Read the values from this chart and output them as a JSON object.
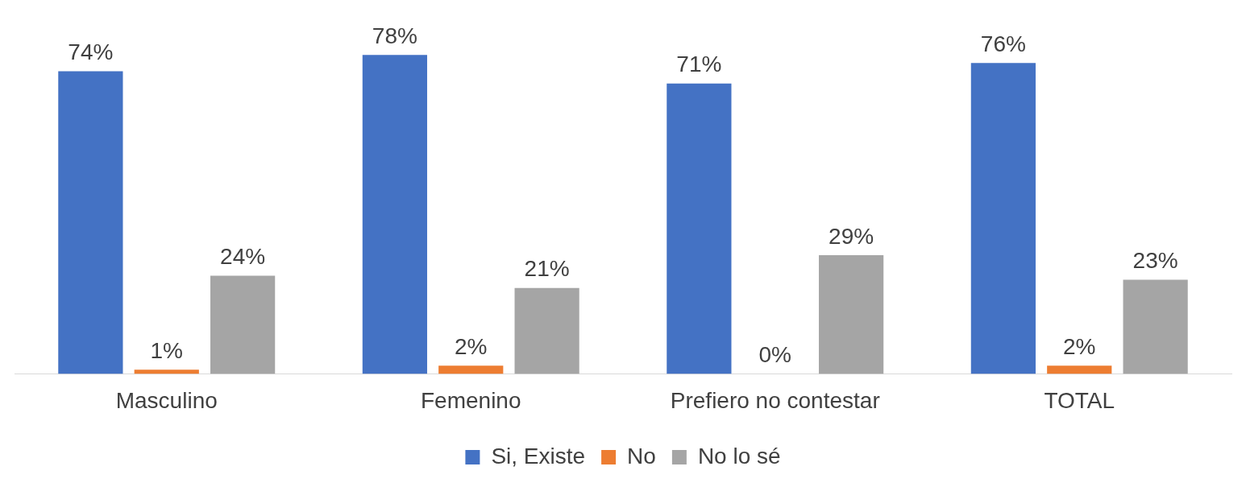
{
  "chart_data": {
    "type": "bar",
    "categories": [
      "Masculino",
      "Femenino",
      "Prefiero no contestar",
      "TOTAL"
    ],
    "series": [
      {
        "name": "Si, Existe",
        "color": "#4472c4",
        "values": [
          74,
          78,
          71,
          76
        ],
        "value_labels": [
          "74%",
          "78%",
          "71%",
          "76%"
        ]
      },
      {
        "name": "No",
        "color": "#ed7d31",
        "values": [
          1,
          2,
          0,
          2
        ],
        "value_labels": [
          "1%",
          "2%",
          "0%",
          "2%"
        ]
      },
      {
        "name": "No lo sé",
        "color": "#a5a5a5",
        "values": [
          24,
          21,
          29,
          23
        ],
        "value_labels": [
          "24%",
          "21%",
          "29%",
          "23%"
        ]
      }
    ],
    "legend": "bottom",
    "grid": false,
    "tick_labels": "x"
  }
}
